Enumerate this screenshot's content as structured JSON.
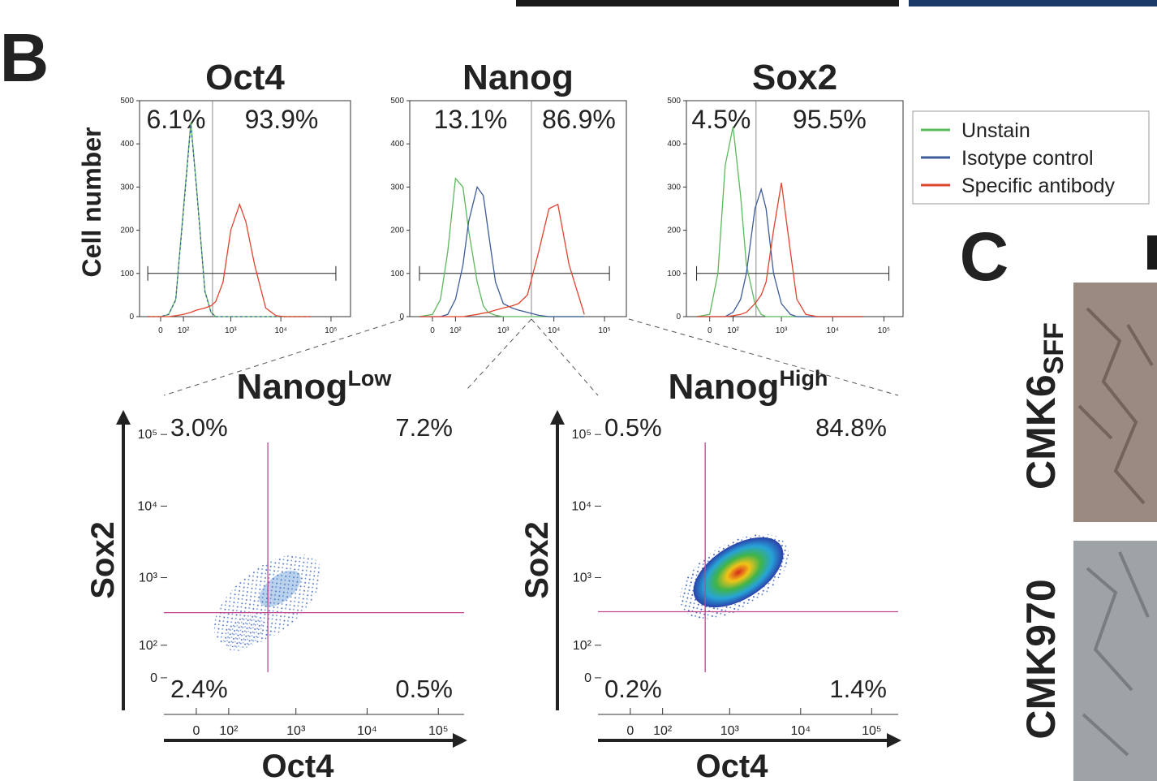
{
  "panel_b": {
    "label": "B"
  },
  "panel_c": {
    "label": "C",
    "rows": [
      {
        "name": "CMK6",
        "subscript": "SFF"
      },
      {
        "name": "CMK970"
      }
    ]
  },
  "chart_data": [
    {
      "type": "line",
      "title": "Oct4",
      "ylabel": "Cell number",
      "x": [
        -50,
        0,
        30,
        60,
        100,
        150,
        200,
        300,
        400,
        500,
        700,
        1000,
        1500,
        2000,
        3000,
        5000,
        8000,
        12000,
        20000,
        40000
      ],
      "series": [
        {
          "name": "Unstain",
          "color": "#5cb85c",
          "values": [
            0,
            0,
            5,
            40,
            250,
            450,
            300,
            60,
            10,
            0,
            0,
            0,
            0,
            0,
            0,
            0,
            0,
            0,
            0,
            0
          ]
        },
        {
          "name": "Isotype control",
          "color": "#3d5a99",
          "values": [
            0,
            0,
            5,
            38,
            245,
            445,
            298,
            58,
            10,
            0,
            0,
            0,
            0,
            0,
            0,
            0,
            0,
            0,
            0,
            0
          ]
        },
        {
          "name": "Specific antibody",
          "color": "#e0442f",
          "values": [
            0,
            0,
            0,
            2,
            5,
            10,
            15,
            20,
            25,
            35,
            80,
            200,
            260,
            220,
            120,
            20,
            2,
            0,
            0,
            0
          ]
        }
      ],
      "xlim": [
        -90,
        245000
      ],
      "ylim": [
        0,
        500
      ],
      "xticks": [
        0,
        {
          "value": 100,
          "label": "10²"
        },
        {
          "value": 1000,
          "label": "10³"
        },
        {
          "value": 10000,
          "label": "10⁴"
        },
        {
          "value": 100000,
          "label": "10⁵"
        }
      ],
      "yticks": [
        0,
        100,
        200,
        300,
        400,
        500
      ],
      "threshold": 430,
      "gate": {
        "y": 100,
        "x": [
          -50,
          125000
        ]
      },
      "annotations": [
        "6.1%",
        "93.9%"
      ]
    },
    {
      "type": "line",
      "title": "Nanog",
      "x": [
        -50,
        0,
        30,
        60,
        100,
        150,
        200,
        300,
        400,
        500,
        700,
        1000,
        1500,
        2000,
        3000,
        5000,
        8000,
        12000,
        20000,
        40000
      ],
      "series": [
        {
          "color": "#5cb85c",
          "values": [
            0,
            5,
            40,
            150,
            320,
            300,
            200,
            80,
            25,
            10,
            3,
            0,
            0,
            0,
            0,
            0,
            0,
            0,
            0,
            0
          ]
        },
        {
          "color": "#3d5a99",
          "values": [
            0,
            0,
            0,
            5,
            40,
            120,
            220,
            300,
            280,
            200,
            80,
            30,
            20,
            15,
            10,
            3,
            0,
            0,
            0,
            0
          ]
        },
        {
          "color": "#e0442f",
          "values": [
            0,
            0,
            0,
            0,
            0,
            0,
            2,
            5,
            8,
            10,
            15,
            20,
            25,
            30,
            50,
            150,
            250,
            260,
            120,
            5
          ]
        }
      ],
      "xlim": [
        -98,
        270000
      ],
      "ylim": [
        0,
        500
      ],
      "xticks": [
        0,
        {
          "value": 100,
          "label": "10²"
        },
        {
          "value": 1000,
          "label": "10³"
        },
        {
          "value": 10000,
          "label": "10⁴"
        },
        {
          "value": 100000,
          "label": "10⁵"
        }
      ],
      "yticks": [
        0,
        100,
        200,
        300,
        400,
        500
      ],
      "threshold": 3600,
      "gate": {
        "y": 100,
        "x": [
          -50,
          125000
        ]
      },
      "annotations": [
        "13.1%",
        "86.9%"
      ]
    },
    {
      "type": "line",
      "title": "Sox2",
      "x": [
        -50,
        0,
        30,
        60,
        100,
        150,
        200,
        300,
        400,
        500,
        700,
        1000,
        1500,
        2000,
        3000,
        5000,
        8000,
        12000,
        20000,
        40000
      ],
      "series": [
        {
          "color": "#5cb85c",
          "values": [
            0,
            5,
            100,
            350,
            440,
            280,
            120,
            30,
            5,
            0,
            0,
            0,
            0,
            0,
            0,
            0,
            0,
            0,
            0,
            0
          ]
        },
        {
          "color": "#3d5a99",
          "values": [
            0,
            0,
            0,
            0,
            10,
            40,
            100,
            250,
            295,
            250,
            100,
            30,
            5,
            0,
            0,
            0,
            0,
            0,
            0,
            0
          ]
        },
        {
          "color": "#e0442f",
          "values": [
            0,
            0,
            0,
            0,
            2,
            5,
            10,
            30,
            50,
            80,
            200,
            310,
            150,
            40,
            5,
            0,
            0,
            0,
            0,
            0
          ]
        }
      ],
      "xlim": [
        -100,
        236000
      ],
      "ylim": [
        0,
        500
      ],
      "xticks": [
        0,
        {
          "value": 100,
          "label": "10²"
        },
        {
          "value": 1000,
          "label": "10³"
        },
        {
          "value": 10000,
          "label": "10⁴"
        },
        {
          "value": 100000,
          "label": "10⁵"
        }
      ],
      "yticks": [
        0,
        100,
        200,
        300,
        400,
        500
      ],
      "threshold": 315,
      "gate": {
        "y": 100,
        "x": [
          -50,
          125000
        ]
      },
      "annotations": [
        "4.5%",
        "95.5%"
      ]
    },
    {
      "type": "scatter",
      "title": "Nanog",
      "title_superscript": "Low",
      "xlabel": "Oct4",
      "ylabel": "Sox2",
      "xlim": [
        -100,
        230000
      ],
      "ylim": [
        -100,
        220000
      ],
      "xticks": [
        0,
        {
          "value": 100,
          "label": "10²"
        },
        {
          "value": 1000,
          "label": "10³"
        },
        {
          "value": 10000,
          "label": "10⁴"
        },
        {
          "value": 100000,
          "label": "10⁵"
        }
      ],
      "yticks": [
        0,
        {
          "value": 100,
          "label": "10²"
        },
        {
          "value": 1000,
          "label": "10³"
        },
        {
          "value": 10000,
          "label": "10⁴"
        },
        {
          "value": 100000,
          "label": "10⁵"
        }
      ],
      "quadrant": {
        "x": 400,
        "y": 320
      },
      "quadrant_color": "#c0478f",
      "quadrant_labels": [
        "3.0%",
        "7.2%",
        "2.4%",
        "0.5%"
      ]
    },
    {
      "type": "scatter",
      "title": "Nanog",
      "title_superscript": "High",
      "xlabel": "Oct4",
      "ylabel": "Sox2",
      "xlim": [
        -100,
        236000
      ],
      "ylim": [
        -100,
        220000
      ],
      "xticks": [
        0,
        {
          "value": 100,
          "label": "10²"
        },
        {
          "value": 1000,
          "label": "10³"
        },
        {
          "value": 10000,
          "label": "10⁴"
        },
        {
          "value": 100000,
          "label": "10⁵"
        }
      ],
      "yticks": [
        0,
        {
          "value": 100,
          "label": "10²"
        },
        {
          "value": 1000,
          "label": "10³"
        },
        {
          "value": 10000,
          "label": "10⁴"
        },
        {
          "value": 100000,
          "label": "10⁵"
        }
      ],
      "quadrant": {
        "x": 450,
        "y": 330
      },
      "quadrant_color": "#c0478f",
      "quadrant_labels": [
        "0.5%",
        "84.8%",
        "0.2%",
        "1.4%"
      ]
    }
  ]
}
